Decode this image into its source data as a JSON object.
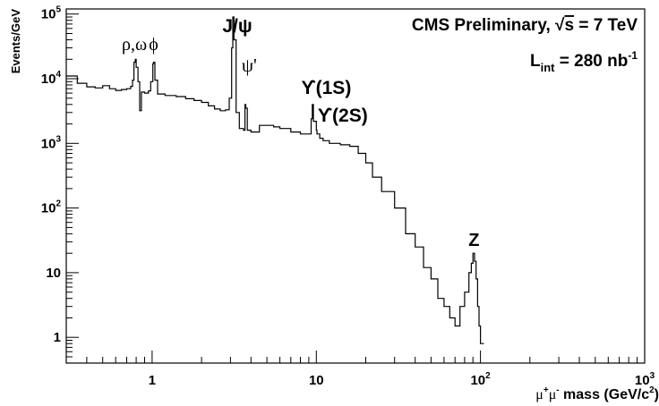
{
  "chart_data": {
    "type": "line",
    "step": true,
    "title": "",
    "xlabel_parts": [
      "μ",
      "+",
      "μ",
      "-",
      " mass (GeV/c",
      "2",
      ")"
    ],
    "ylabel": "Events/GeV",
    "x_scale": "log",
    "y_scale": "log",
    "xlim": [
      0.3,
      1000
    ],
    "ylim": [
      0.4,
      120000
    ],
    "grid": false,
    "legend": "none",
    "x_ticks": [
      {
        "value": 1,
        "label": "1"
      },
      {
        "value": 10,
        "label": "10"
      },
      {
        "value": 100,
        "label": "10",
        "sup": "2"
      },
      {
        "value": 1000,
        "label": "10",
        "sup": "3"
      }
    ],
    "y_ticks": [
      {
        "value": 1,
        "label": "1"
      },
      {
        "value": 10,
        "label": "10"
      },
      {
        "value": 100,
        "label": "10",
        "sup": "2"
      },
      {
        "value": 1000,
        "label": "10",
        "sup": "3"
      },
      {
        "value": 10000,
        "label": "10",
        "sup": "4"
      },
      {
        "value": 100000,
        "label": "10",
        "sup": "5"
      }
    ],
    "header_lines": [
      {
        "parts": [
          "CMS Preliminary, ",
          "√",
          "s",
          " = 7 TeV"
        ]
      },
      {
        "parts": [
          "L",
          "int",
          " = 280 nb",
          "-1"
        ]
      }
    ],
    "annotations": [
      {
        "text": "ρ,ω",
        "x": 0.78,
        "serif": true
      },
      {
        "text": "ϕ",
        "x": 1.02,
        "serif": true
      },
      {
        "text": "J/ψ",
        "x": 3.3,
        "serif": false
      },
      {
        "text": "ψ'",
        "x": 3.9,
        "serif": true
      },
      {
        "text": "ϒ(1S)",
        "x": 11.5,
        "serif": false
      },
      {
        "text": "ϒ(2S)",
        "x": 14.5,
        "serif": false
      },
      {
        "text": "Z",
        "x": 91.2,
        "serif": false
      }
    ],
    "series": [
      {
        "points": [
          [
            0.3,
            11000
          ],
          [
            0.35,
            8500
          ],
          [
            0.4,
            7500
          ],
          [
            0.45,
            7200
          ],
          [
            0.5,
            7800
          ],
          [
            0.55,
            7000
          ],
          [
            0.6,
            6600
          ],
          [
            0.65,
            6800
          ],
          [
            0.7,
            7000
          ],
          [
            0.74,
            7600
          ],
          [
            0.76,
            9500
          ],
          [
            0.775,
            18000
          ],
          [
            0.79,
            20000
          ],
          [
            0.8,
            15000
          ],
          [
            0.82,
            9000
          ],
          [
            0.84,
            3200
          ],
          [
            0.86,
            6200
          ],
          [
            0.9,
            6000
          ],
          [
            0.95,
            6500
          ],
          [
            0.98,
            9000
          ],
          [
            1.01,
            17000
          ],
          [
            1.02,
            18000
          ],
          [
            1.04,
            9500
          ],
          [
            1.08,
            5800
          ],
          [
            1.2,
            5500
          ],
          [
            1.4,
            5300
          ],
          [
            1.6,
            4900
          ],
          [
            1.8,
            4600
          ],
          [
            2.0,
            4300
          ],
          [
            2.2,
            3800
          ],
          [
            2.4,
            3400
          ],
          [
            2.6,
            3200
          ],
          [
            2.8,
            3300
          ],
          [
            2.95,
            5000
          ],
          [
            3.05,
            30000
          ],
          [
            3.1,
            90000
          ],
          [
            3.15,
            40000
          ],
          [
            3.25,
            3000
          ],
          [
            3.4,
            1700
          ],
          [
            3.6,
            1600
          ],
          [
            3.68,
            4000
          ],
          [
            3.72,
            3500
          ],
          [
            3.8,
            1600
          ],
          [
            4.0,
            1500
          ],
          [
            4.5,
            1900
          ],
          [
            5.0,
            1900
          ],
          [
            5.5,
            1800
          ],
          [
            6.0,
            1700
          ],
          [
            7.0,
            1500
          ],
          [
            8.0,
            1400
          ],
          [
            9.0,
            1400
          ],
          [
            9.3,
            2400
          ],
          [
            9.46,
            4000
          ],
          [
            9.6,
            2200
          ],
          [
            10.0,
            1600
          ],
          [
            10.1,
            1400
          ],
          [
            10.5,
            1200
          ],
          [
            11.0,
            1100
          ],
          [
            12.0,
            1000
          ],
          [
            14.0,
            950
          ],
          [
            16.0,
            900
          ],
          [
            18.0,
            700
          ],
          [
            20.0,
            500
          ],
          [
            22.0,
            300
          ],
          [
            25.0,
            180
          ],
          [
            30.0,
            100
          ],
          [
            35.0,
            40
          ],
          [
            40.0,
            25
          ],
          [
            45.0,
            12
          ],
          [
            50.0,
            8
          ],
          [
            55.0,
            4
          ],
          [
            60.0,
            3
          ],
          [
            65.0,
            2
          ],
          [
            70.0,
            1.5
          ],
          [
            75.0,
            3
          ],
          [
            80.0,
            5
          ],
          [
            85.0,
            10
          ],
          [
            88.0,
            14
          ],
          [
            90.0,
            20
          ],
          [
            92.0,
            15
          ],
          [
            94.0,
            8
          ],
          [
            96.0,
            3
          ],
          [
            98.0,
            1.5
          ],
          [
            100.0,
            0.8
          ],
          [
            105.0,
            0.8
          ]
        ]
      }
    ]
  }
}
